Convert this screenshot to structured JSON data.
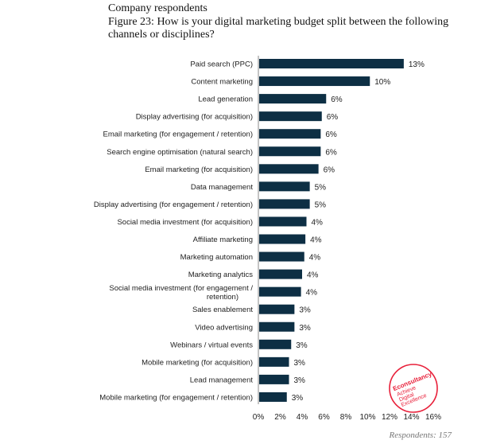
{
  "header": {
    "subtitle": "Company respondents",
    "title_line1": "Figure 23: How is your digital marketing budget split between the following",
    "title_line2": "channels or disciplines?"
  },
  "footer": {
    "respondents": "Respondents: 157"
  },
  "logo": {
    "text": "Econsultancy Achieve Digital Excellence",
    "color": "#e8203a"
  },
  "chart_data": {
    "type": "bar",
    "orientation": "horizontal",
    "title": "How is your digital marketing budget split between the following channels or disciplines?",
    "bar_color": "#0d2f44",
    "categories": [
      "Paid search (PPC)",
      "Content marketing",
      "Lead generation",
      "Display advertising (for acquisition)",
      "Email marketing (for engagement / retention)",
      "Search engine optimisation (natural search)",
      "Email marketing (for acquisition)",
      "Data management",
      "Display advertising (for engagement / retention)",
      "Social media investment (for acquisition)",
      "Affiliate marketing",
      "Marketing automation",
      "Marketing analytics",
      "Social media investment (for engagement / retention)",
      "Sales enablement",
      "Video advertising",
      "Webinars / virtual events",
      "Mobile marketing (for acquisition)",
      "Lead management",
      "Mobile marketing (for engagement / retention)"
    ],
    "values": [
      13.3,
      10.2,
      6.2,
      5.8,
      5.7,
      5.7,
      5.5,
      4.7,
      4.7,
      4.4,
      4.3,
      4.2,
      4.0,
      3.9,
      3.3,
      3.3,
      3.0,
      2.8,
      2.8,
      2.6
    ],
    "labels": [
      "13%",
      "10%",
      "6%",
      "6%",
      "6%",
      "6%",
      "6%",
      "5%",
      "5%",
      "4%",
      "4%",
      "4%",
      "4%",
      "4%",
      "3%",
      "3%",
      "3%",
      "3%",
      "3%",
      "3%"
    ],
    "xticks": [
      "0%",
      "2%",
      "4%",
      "6%",
      "8%",
      "10%",
      "12%",
      "14%",
      "16%"
    ],
    "xlim": [
      0,
      16
    ],
    "grid": false
  }
}
